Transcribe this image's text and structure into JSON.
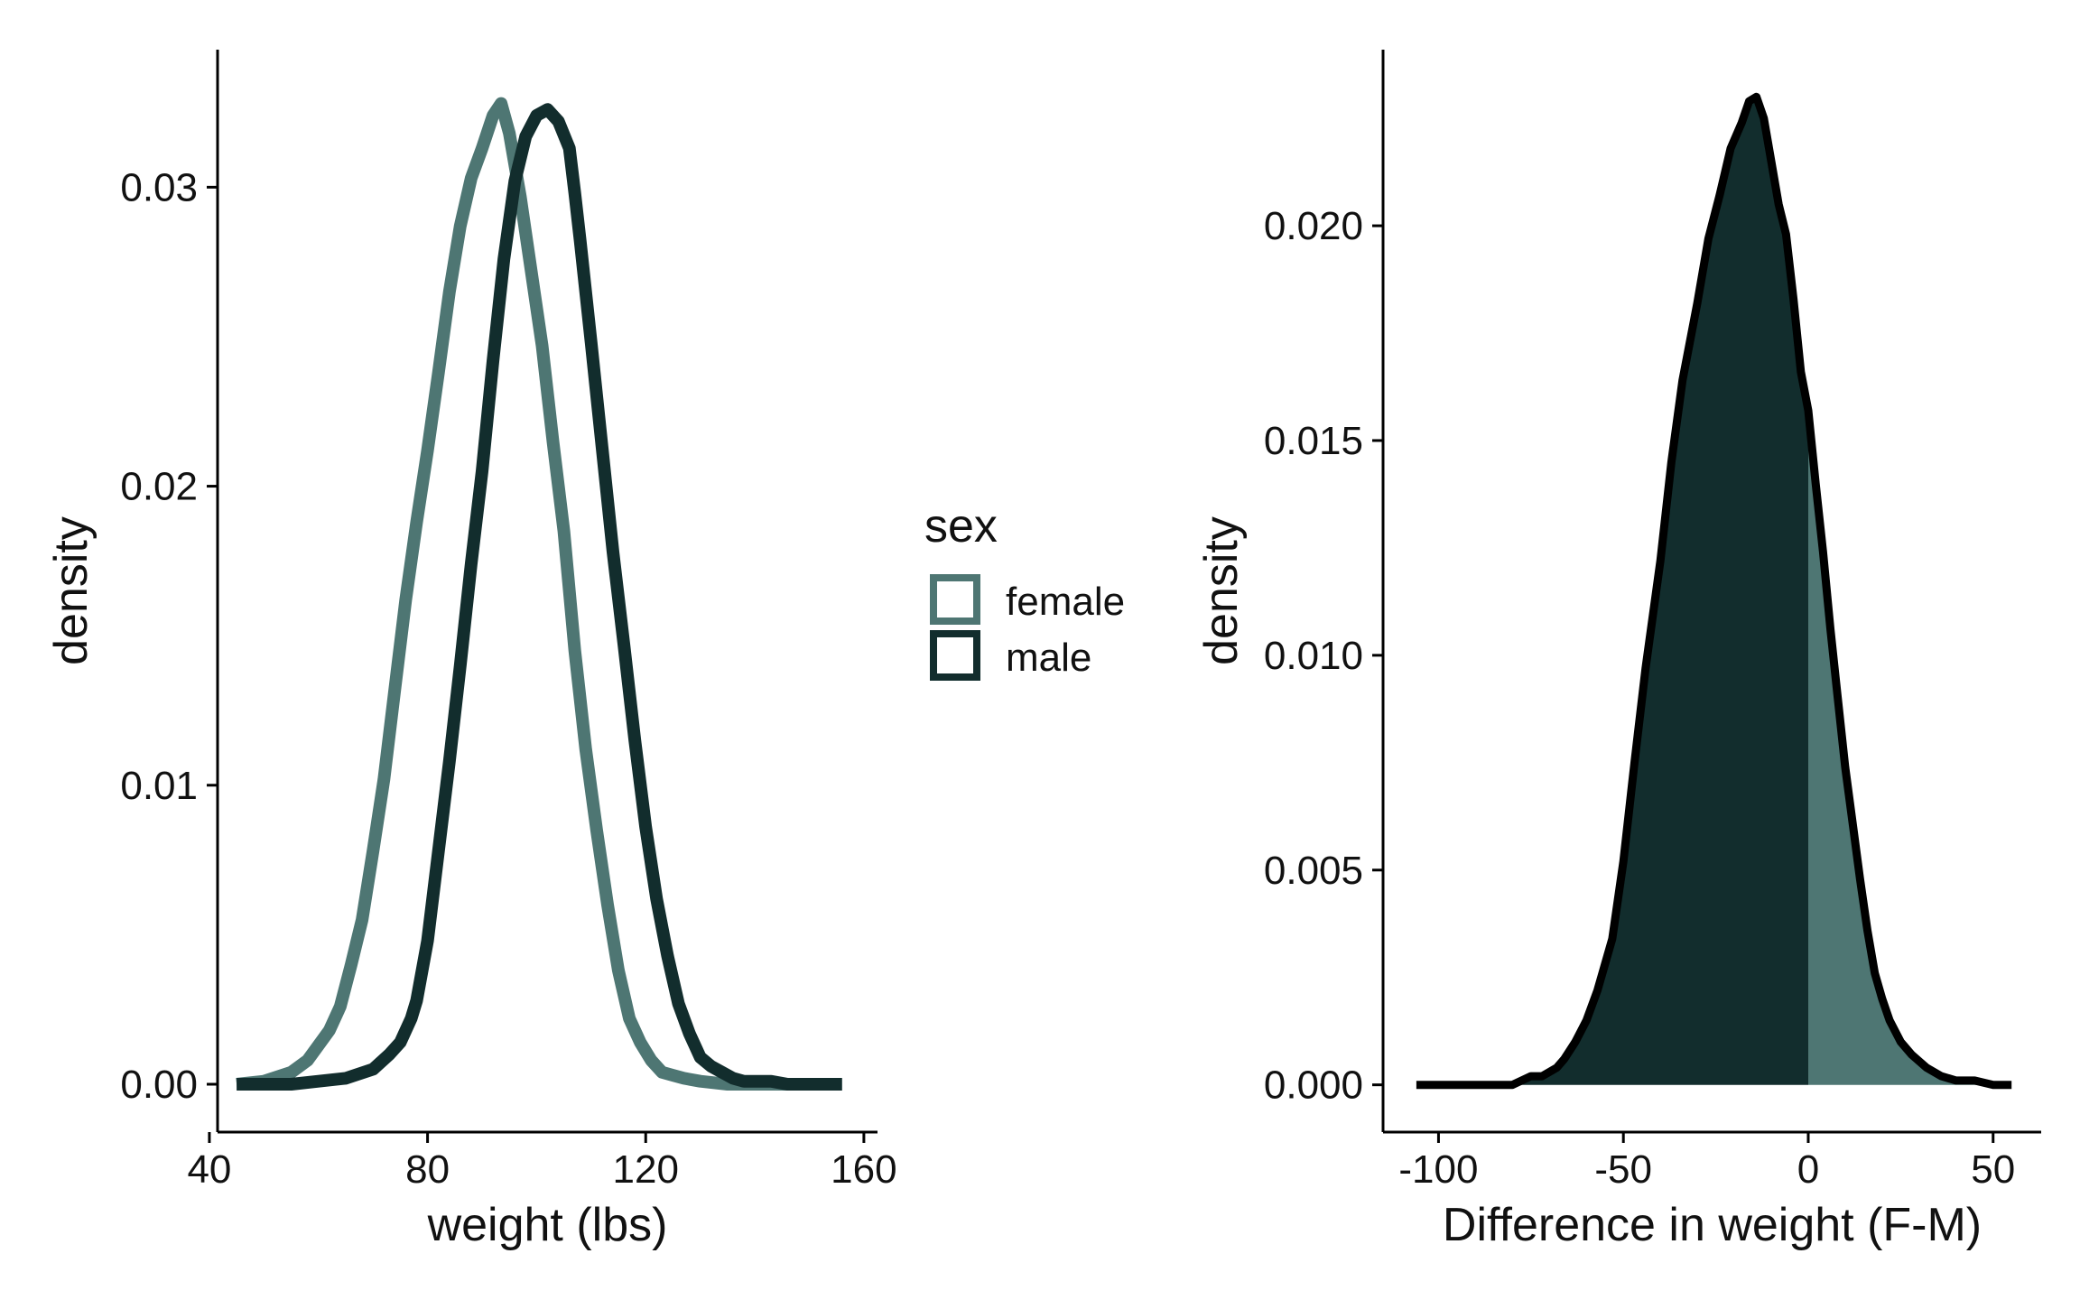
{
  "colors": {
    "female": "#4e7673",
    "male": "#122d2d",
    "axis": "#000000",
    "diff_outline": "#000000"
  },
  "legend": {
    "title": "sex",
    "items": [
      {
        "label": "female",
        "color": "#4e7673"
      },
      {
        "label": "male",
        "color": "#122d2d"
      }
    ]
  },
  "chart_data": [
    {
      "type": "line",
      "title": "",
      "xlabel": "weight (lbs)",
      "ylabel": "density",
      "xlim": [
        41.5,
        162.5
      ],
      "ylim": [
        -0.0016,
        0.0346
      ],
      "xticks": [
        40,
        80,
        120,
        160
      ],
      "xtick_labels": [
        "40",
        "80",
        "120",
        "160"
      ],
      "yticks": [
        0,
        0.01,
        0.02,
        0.03
      ],
      "ytick_labels": [
        "0.00",
        "0.01",
        "0.02",
        "0.03"
      ],
      "grid": false,
      "legend_position": "right",
      "series": [
        {
          "name": "female",
          "x": [
            45,
            50,
            55,
            58,
            60,
            62,
            64,
            66,
            68,
            70,
            72,
            74,
            76,
            78,
            80,
            82,
            84,
            86,
            88,
            90,
            92,
            93.5,
            95,
            97,
            99,
            101,
            103,
            105,
            107,
            109,
            111,
            113,
            115,
            117,
            119,
            121,
            123,
            125,
            127,
            130,
            135,
            140,
            145,
            156
          ],
          "y": [
            0.0,
            0.0001,
            0.0004,
            0.0008,
            0.0013,
            0.0018,
            0.0026,
            0.004,
            0.0055,
            0.0078,
            0.0102,
            0.0132,
            0.0162,
            0.0188,
            0.0212,
            0.0238,
            0.0265,
            0.0287,
            0.0303,
            0.0313,
            0.0324,
            0.0328,
            0.0318,
            0.0297,
            0.0272,
            0.0247,
            0.0215,
            0.0185,
            0.0145,
            0.0112,
            0.0085,
            0.006,
            0.0038,
            0.0022,
            0.0014,
            0.0008,
            0.0004,
            0.0003,
            0.0002,
            0.0001,
            0.0,
            0.0,
            0.0,
            0.0
          ]
        },
        {
          "name": "male",
          "x": [
            45,
            55,
            60,
            65,
            70,
            73,
            75,
            77,
            78,
            80,
            82,
            84,
            86,
            88,
            90,
            92,
            94,
            96,
            98,
            100,
            102,
            104,
            106,
            107,
            108,
            110,
            112,
            114,
            116,
            118,
            120,
            122,
            124,
            126,
            128,
            130,
            132,
            134,
            136,
            138,
            140,
            143,
            146,
            150,
            156
          ],
          "y": [
            0.0,
            0.0,
            0.0001,
            0.0002,
            0.0005,
            0.001,
            0.0014,
            0.0022,
            0.0028,
            0.0048,
            0.0078,
            0.0108,
            0.014,
            0.0174,
            0.0205,
            0.0242,
            0.0276,
            0.0302,
            0.0317,
            0.0324,
            0.0326,
            0.0322,
            0.0313,
            0.0298,
            0.0282,
            0.0248,
            0.0213,
            0.0178,
            0.0147,
            0.0115,
            0.0086,
            0.0062,
            0.0043,
            0.0027,
            0.0017,
            0.0009,
            0.0006,
            0.0004,
            0.0002,
            0.0001,
            0.0001,
            0.0001,
            0.0,
            0.0,
            0.0
          ]
        }
      ]
    },
    {
      "type": "area",
      "title": "",
      "xlabel": "Difference in weight (F-M)",
      "ylabel": "density",
      "xlim": [
        -115,
        63
      ],
      "ylim": [
        -0.0011,
        0.0241
      ],
      "xticks": [
        -100,
        -50,
        0,
        50
      ],
      "xtick_labels": [
        "-100",
        "-50",
        "0",
        "50"
      ],
      "yticks": [
        0,
        0.005,
        0.01,
        0.015,
        0.02
      ],
      "ytick_labels": [
        "0.000",
        "0.005",
        "0.010",
        "0.015",
        "0.020"
      ],
      "grid": false,
      "fill_split_at_x": 0,
      "fill_below_split": "#122d2d",
      "fill_above_split": "#4e7673",
      "series": [
        {
          "x": [
            -106,
            -100,
            -95,
            -90,
            -85,
            -80,
            -75,
            -72,
            -70,
            -68,
            -66,
            -63,
            -60,
            -57,
            -53,
            -50,
            -47,
            -44,
            -40,
            -37,
            -34,
            -30,
            -27,
            -24,
            -21,
            -18,
            -16,
            -14,
            -12,
            -10,
            -8,
            -6,
            -4,
            -2,
            0,
            2,
            4,
            6,
            8,
            10,
            12,
            14,
            16,
            18,
            20,
            22,
            25,
            28,
            32,
            36,
            40,
            45,
            50,
            55
          ],
          "y": [
            0.0,
            0.0,
            0.0,
            0.0,
            0.0,
            0.0,
            0.0002,
            0.0002,
            0.0003,
            0.0004,
            0.0006,
            0.001,
            0.0015,
            0.0022,
            0.0034,
            0.0052,
            0.0075,
            0.0097,
            0.0122,
            0.0145,
            0.0164,
            0.0182,
            0.0197,
            0.0207,
            0.0218,
            0.0224,
            0.0229,
            0.023,
            0.0225,
            0.0215,
            0.0205,
            0.0198,
            0.0183,
            0.0166,
            0.0157,
            0.014,
            0.0124,
            0.0106,
            0.009,
            0.0074,
            0.0061,
            0.0048,
            0.0036,
            0.0026,
            0.002,
            0.0015,
            0.001,
            0.0007,
            0.0004,
            0.0002,
            0.0001,
            0.0001,
            0.0,
            0.0
          ]
        }
      ]
    }
  ]
}
